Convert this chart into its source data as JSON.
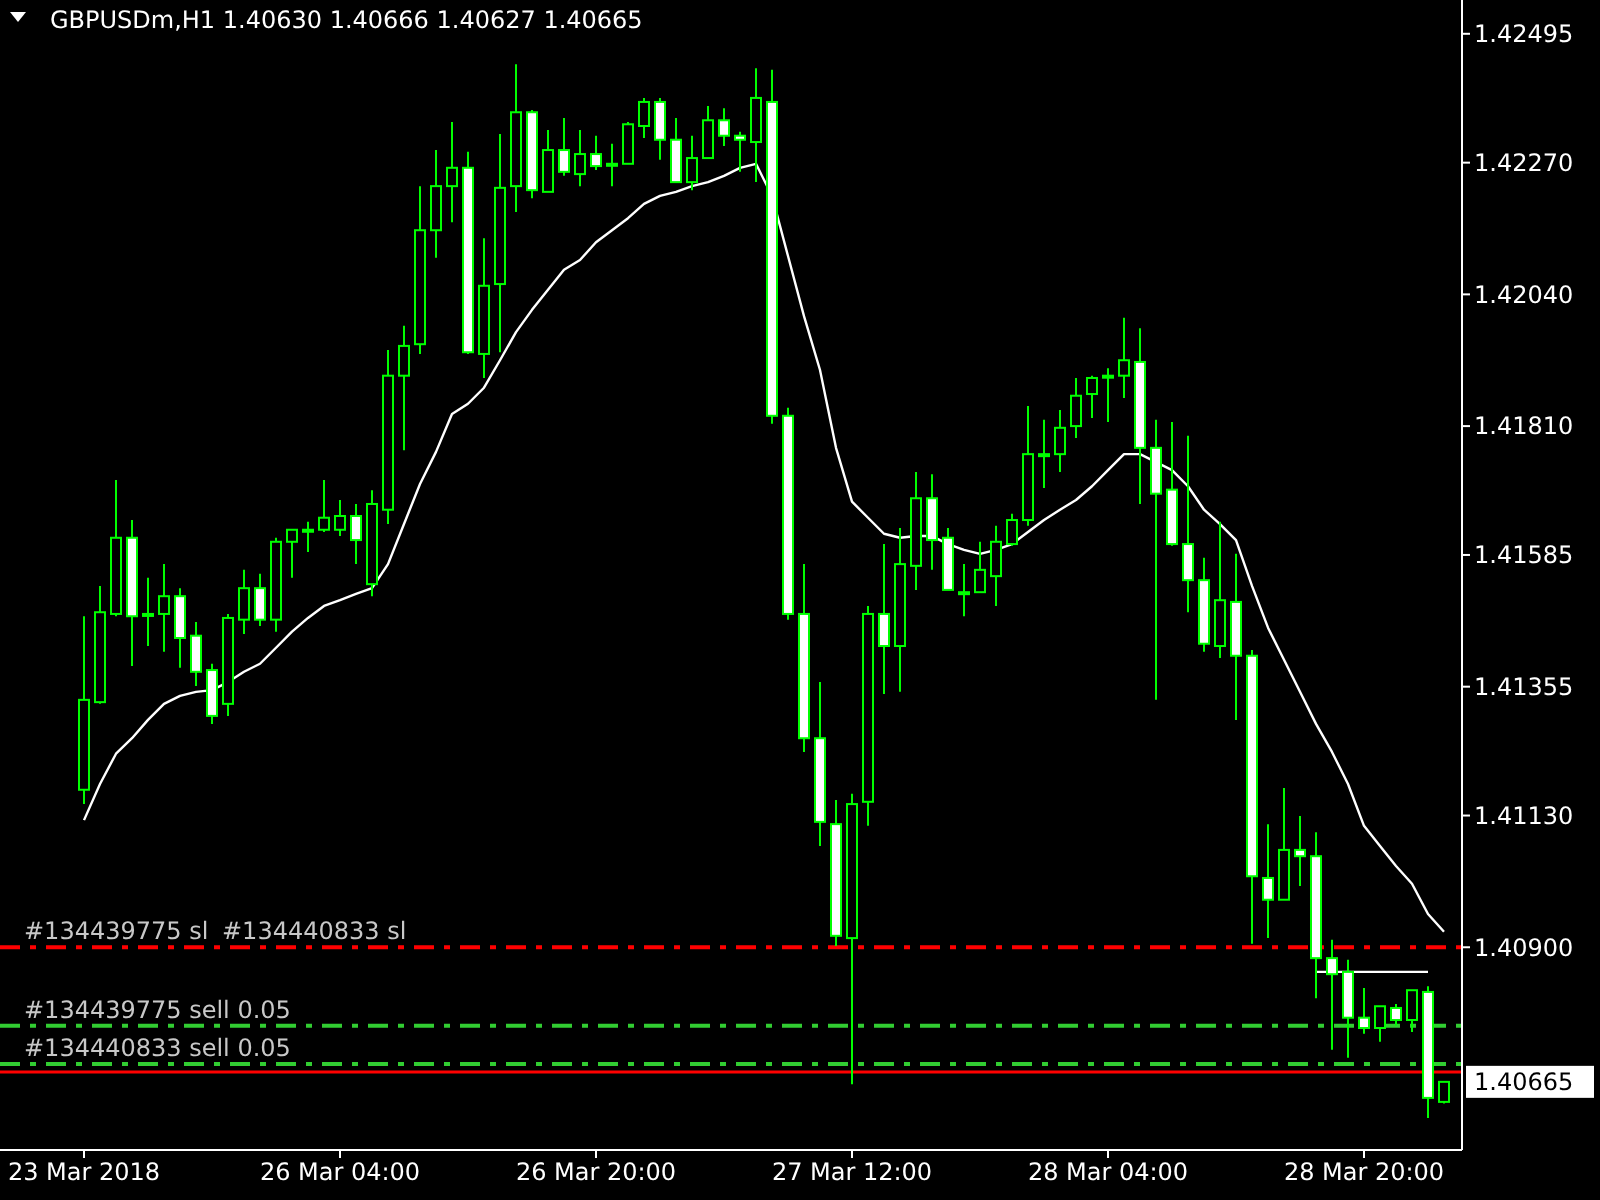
{
  "chart_data": {
    "type": "candlestick",
    "title": "GBPUSDm,H1  1.40630 1.40666 1.40627 1.40665",
    "categories": [
      "23 Mar 2018",
      null,
      null,
      null,
      null,
      null,
      null,
      null,
      null,
      null,
      null,
      null,
      null,
      null,
      null,
      null,
      "26 Mar 04:00",
      null,
      null,
      null,
      null,
      null,
      null,
      null,
      null,
      null,
      null,
      null,
      null,
      null,
      null,
      null,
      "26 Mar 20:00",
      null,
      null,
      null,
      null,
      null,
      null,
      null,
      null,
      null,
      null,
      null,
      null,
      null,
      null,
      null,
      "27 Mar 12:00",
      null,
      null,
      null,
      null,
      null,
      null,
      null,
      null,
      null,
      null,
      null,
      null,
      null,
      null,
      null,
      "28 Mar 04:00",
      null,
      null,
      null,
      null,
      null,
      null,
      null,
      null,
      null,
      null,
      null,
      null,
      null,
      null,
      null,
      "28 Mar 20:00",
      null,
      null,
      null,
      null,
      null
    ],
    "ohlc": [
      [
        1.41175,
        1.41478,
        1.4115,
        1.41332
      ],
      [
        1.41328,
        1.41531,
        1.41325,
        1.41485
      ],
      [
        1.41482,
        1.41716,
        1.41478,
        1.41615
      ],
      [
        1.41615,
        1.41646,
        1.41391,
        1.41478
      ],
      [
        1.41482,
        1.41545,
        1.41426,
        1.41482
      ],
      [
        1.41482,
        1.41569,
        1.41416,
        1.41513
      ],
      [
        1.41513,
        1.41527,
        1.41388,
        1.4144
      ],
      [
        1.41444,
        1.41468,
        1.41356,
        1.41381
      ],
      [
        1.41384,
        1.41395,
        1.4129,
        1.41304
      ],
      [
        1.41325,
        1.41482,
        1.41304,
        1.41475
      ],
      [
        1.41472,
        1.41559,
        1.41447,
        1.41527
      ],
      [
        1.41527,
        1.41552,
        1.41461,
        1.41472
      ],
      [
        1.41472,
        1.41615,
        1.41451,
        1.41608
      ],
      [
        1.41608,
        1.41629,
        1.41545,
        1.41629
      ],
      [
        1.41629,
        1.41643,
        1.4159,
        1.41629
      ],
      [
        1.41629,
        1.41716,
        1.41625,
        1.4165
      ],
      [
        1.41629,
        1.41681,
        1.41618,
        1.41653
      ],
      [
        1.41653,
        1.41674,
        1.41569,
        1.41611
      ],
      [
        1.41534,
        1.41698,
        1.41513,
        1.41674
      ],
      [
        1.41664,
        1.41943,
        1.41639,
        1.41898
      ],
      [
        1.41898,
        1.41985,
        1.41768,
        1.4195
      ],
      [
        1.41953,
        1.42229,
        1.41936,
        1.42152
      ],
      [
        1.42152,
        1.42292,
        1.42104,
        1.42229
      ],
      [
        1.42229,
        1.42341,
        1.42166,
        1.42261
      ],
      [
        1.42261,
        1.42289,
        1.41936,
        1.41939
      ],
      [
        1.41936,
        1.42138,
        1.41894,
        1.42055
      ],
      [
        1.42058,
        1.4232,
        1.41939,
        1.42226
      ],
      [
        1.42229,
        1.42442,
        1.42184,
        1.42358
      ],
      [
        1.42358,
        1.42362,
        1.42208,
        1.42222
      ],
      [
        1.42219,
        1.42327,
        1.42219,
        1.42292
      ],
      [
        1.42292,
        1.42348,
        1.42247,
        1.42254
      ],
      [
        1.4225,
        1.42327,
        1.42229,
        1.42285
      ],
      [
        1.42285,
        1.42317,
        1.42257,
        1.42264
      ],
      [
        1.42268,
        1.42303,
        1.42229,
        1.42268
      ],
      [
        1.42268,
        1.42341,
        1.42268,
        1.42337
      ],
      [
        1.42334,
        1.42383,
        1.42313,
        1.42376
      ],
      [
        1.42376,
        1.42383,
        1.42275,
        1.4231
      ],
      [
        1.4231,
        1.42348,
        1.42236,
        1.42236
      ],
      [
        1.42236,
        1.42317,
        1.42222,
        1.42278
      ],
      [
        1.42278,
        1.42369,
        1.42278,
        1.42344
      ],
      [
        1.42344,
        1.42365,
        1.42299,
        1.42317
      ],
      [
        1.42317,
        1.42324,
        1.42254,
        1.4231
      ],
      [
        1.42306,
        1.42435,
        1.42236,
        1.42383
      ],
      [
        1.42376,
        1.42432,
        1.41814,
        1.41828
      ],
      [
        1.41828,
        1.41842,
        1.41472,
        1.41482
      ],
      [
        1.41482,
        1.41569,
        1.41241,
        1.41265
      ],
      [
        1.41265,
        1.41363,
        1.41077,
        1.41119
      ],
      [
        1.41115,
        1.41157,
        1.40902,
        1.4092
      ],
      [
        1.40916,
        1.41168,
        1.40661,
        1.4115
      ],
      [
        1.41154,
        1.41496,
        1.41112,
        1.41482
      ],
      [
        1.41482,
        1.41604,
        1.41342,
        1.41426
      ],
      [
        1.41426,
        1.41632,
        1.41346,
        1.41569
      ],
      [
        1.41566,
        1.4173,
        1.41524,
        1.41684
      ],
      [
        1.41684,
        1.41726,
        1.41559,
        1.41611
      ],
      [
        1.41615,
        1.41632,
        1.41524,
        1.41524
      ],
      [
        1.4152,
        1.41569,
        1.41478,
        1.4152
      ],
      [
        1.4152,
        1.41608,
        1.4152,
        1.41559
      ],
      [
        1.41548,
        1.41636,
        1.41496,
        1.41608
      ],
      [
        1.41604,
        1.41657,
        1.41601,
        1.41646
      ],
      [
        1.41646,
        1.41845,
        1.41636,
        1.41761
      ],
      [
        1.41761,
        1.41821,
        1.41702,
        1.41761
      ],
      [
        1.41761,
        1.41838,
        1.4173,
        1.41807
      ],
      [
        1.4181,
        1.41894,
        1.41789,
        1.41863
      ],
      [
        1.41866,
        1.41898,
        1.41824,
        1.41894
      ],
      [
        1.41898,
        1.41911,
        1.41817,
        1.41898
      ],
      [
        1.41898,
        1.41999,
        1.41859,
        1.41925
      ],
      [
        1.41922,
        1.41981,
        1.41674,
        1.41772
      ],
      [
        1.41772,
        1.41821,
        1.41332,
        1.41692
      ],
      [
        1.41699,
        1.41817,
        1.41601,
        1.41604
      ],
      [
        1.41604,
        1.41793,
        1.41485,
        1.41541
      ],
      [
        1.41541,
        1.4158,
        1.41416,
        1.4143
      ],
      [
        1.41426,
        1.41643,
        1.41405,
        1.41506
      ],
      [
        1.41503,
        1.41587,
        1.41297,
        1.41409
      ],
      [
        1.41409,
        1.41419,
        1.40906,
        1.41024
      ],
      [
        1.41021,
        1.41115,
        1.40916,
        1.40983
      ],
      [
        1.40983,
        1.41178,
        1.40983,
        1.4107
      ],
      [
        1.4107,
        1.41129,
        1.41007,
        1.41059
      ],
      [
        1.41059,
        1.41101,
        1.40811,
        1.40881
      ],
      [
        1.40881,
        1.40913,
        1.40721,
        1.40853
      ],
      [
        1.40857,
        1.40878,
        1.40707,
        1.40777
      ],
      [
        1.40777,
        1.40829,
        1.40749,
        1.40759
      ],
      [
        1.40759,
        1.40797,
        1.40735,
        1.40797
      ],
      [
        1.40794,
        1.40801,
        1.40763,
        1.40773
      ],
      [
        1.40773,
        1.40825,
        1.40752,
        1.40825
      ],
      [
        1.40822,
        1.40832,
        1.40602,
        1.40637
      ],
      [
        1.4063,
        1.40666,
        1.40627,
        1.40665
      ]
    ],
    "series": [
      {
        "type": "line",
        "color": "#ffffff",
        "values": [
          1.41122,
          1.41185,
          1.41238,
          1.41265,
          1.41297,
          1.41325,
          1.41339,
          1.41346,
          1.41349,
          1.41363,
          1.41381,
          1.41395,
          1.41423,
          1.41451,
          1.41475,
          1.41496,
          1.41506,
          1.41517,
          1.41527,
          1.41569,
          1.41639,
          1.41709,
          1.41765,
          1.41831,
          1.41849,
          1.41877,
          1.41925,
          1.41974,
          1.42013,
          1.42048,
          1.42083,
          1.421,
          1.42131,
          1.42152,
          1.42173,
          1.42198,
          1.42212,
          1.42219,
          1.42229,
          1.42236,
          1.42247,
          1.42261,
          1.42268,
          1.42212,
          1.42107,
          1.42002,
          1.41908,
          1.41772,
          1.41678,
          1.4165,
          1.41622,
          1.41615,
          1.41618,
          1.41618,
          1.41604,
          1.41594,
          1.41587,
          1.41594,
          1.41604,
          1.41625,
          1.41646,
          1.41664,
          1.41681,
          1.41705,
          1.41733,
          1.41761,
          1.41761,
          1.41747,
          1.41733,
          1.41705,
          1.41664,
          1.41639,
          1.41611,
          1.41531,
          1.41458,
          1.41402,
          1.41346,
          1.4129,
          1.41241,
          1.41185,
          1.41112,
          1.41077,
          1.41042,
          1.41011,
          1.40958,
          1.40927
        ]
      },
      {
        "type": "line",
        "color": "#ffffff",
        "values": [
          null,
          null,
          null,
          null,
          null,
          null,
          null,
          null,
          null,
          null,
          null,
          null,
          null,
          null,
          null,
          null,
          null,
          null,
          null,
          null,
          null,
          null,
          null,
          null,
          null,
          null,
          null,
          null,
          null,
          null,
          null,
          null,
          null,
          null,
          null,
          null,
          null,
          null,
          null,
          null,
          null,
          null,
          null,
          null,
          null,
          null,
          null,
          null,
          null,
          null,
          null,
          null,
          null,
          null,
          null,
          null,
          null,
          null,
          null,
          null,
          null,
          null,
          null,
          null,
          null,
          null,
          null,
          null,
          null,
          null,
          null,
          null,
          null,
          null,
          null,
          null,
          null,
          1.40857,
          1.40857,
          1.40857,
          1.40857,
          1.40857,
          1.40857,
          1.40857,
          1.40857,
          null
        ]
      }
    ],
    "ylim": [
      1.40546,
      1.42554
    ],
    "yticks": [
      1.42495,
      {
        "value": 1.4227,
        "label": "1.42270"
      },
      {
        "value": 1.4204,
        "label": "1.42040"
      },
      {
        "value": 1.4181,
        "label": "1.41810"
      },
      1.41585,
      1.41355,
      {
        "value": 1.4113,
        "label": "1.41130"
      },
      {
        "value": 1.409,
        "label": "1.40900"
      }
    ],
    "ref_lines": [
      {
        "axis": "y",
        "value": 1.409,
        "label": "#134439775 sl",
        "color": "#ff0000",
        "line_style": "dashed"
      },
      {
        "axis": "y",
        "value": 1.40763,
        "label": "#134439775 sell 0.05",
        "color": "#32cd32",
        "line_style": "dashed"
      },
      {
        "axis": "y",
        "value": 1.40696,
        "label": "#134440833 sell 0.05",
        "color": "#32cd32",
        "line_style": "dashed"
      },
      {
        "axis": "y",
        "value": 1.40682,
        "color": "#ff0000",
        "line_style": "solid"
      }
    ],
    "annotations": [
      {
        "text": "#134440833 sl",
        "y": 1.409
      },
      "1.40665"
    ]
  }
}
